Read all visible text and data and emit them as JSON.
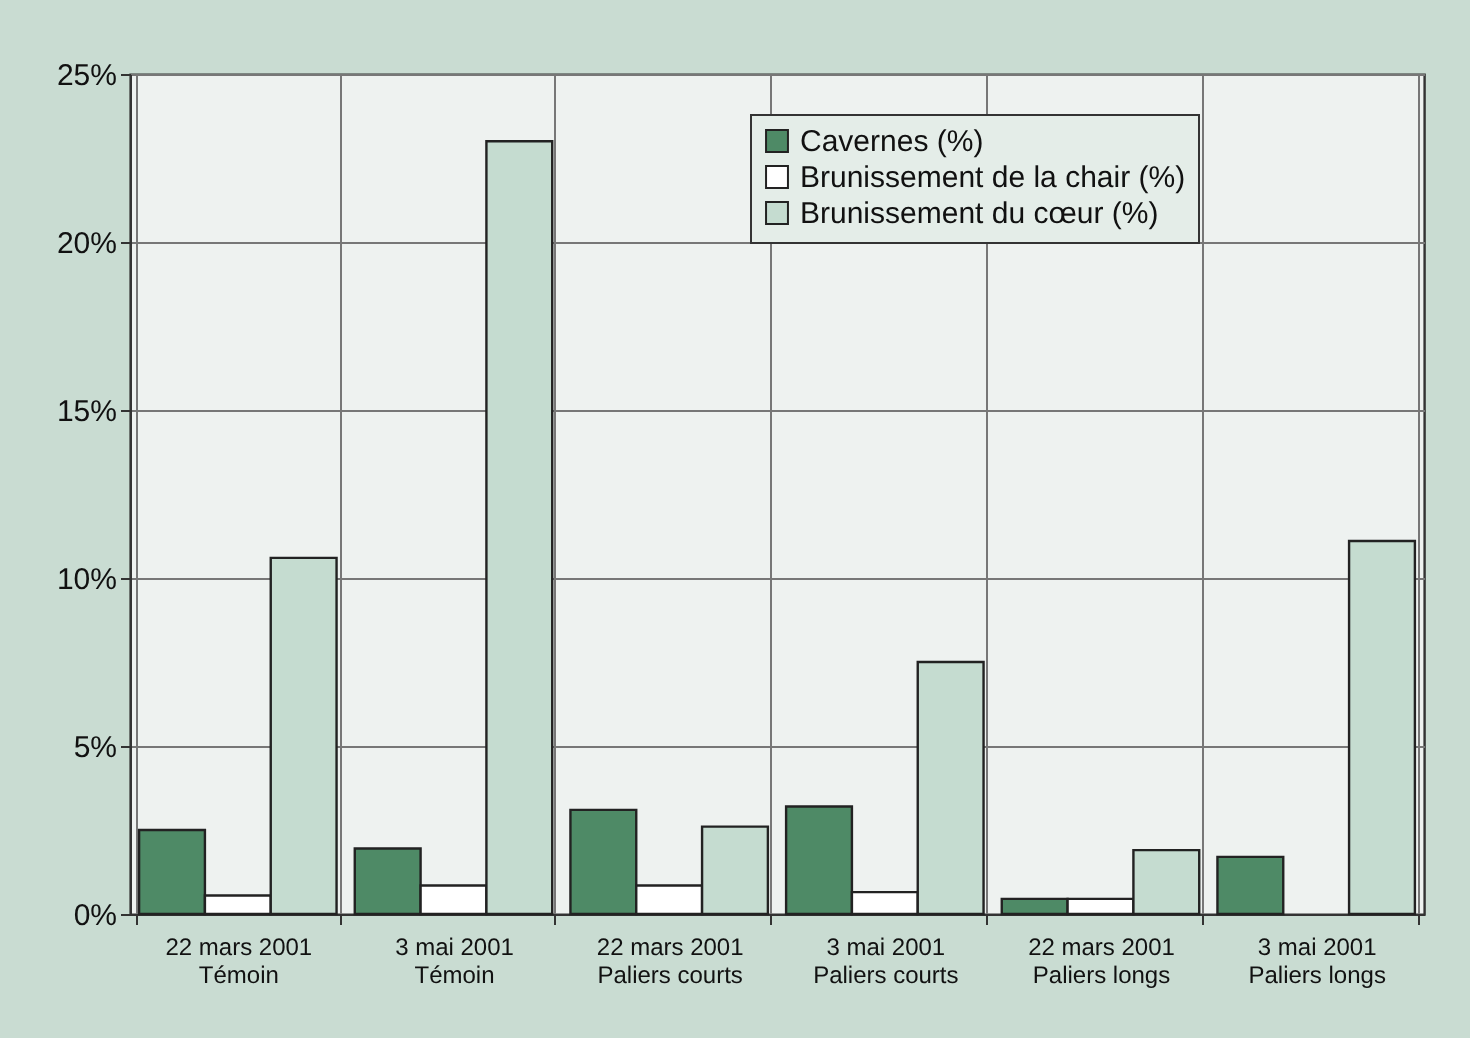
{
  "chart_data": {
    "type": "bar",
    "categories": [
      "22 mars 2001\nTémoin",
      "3 mai 2001\nTémoin",
      "22 mars 2001\nPaliers courts",
      "3 mai 2001\nPaliers courts",
      "22 mars 2001\nPaliers longs",
      "3 mai 2001\nPaliers longs"
    ],
    "series": [
      {
        "name": "Cavernes (%)",
        "color": "#4e8a66",
        "values": [
          2.5,
          1.95,
          3.1,
          3.2,
          0.45,
          1.7
        ]
      },
      {
        "name": "Brunissement de la chair (%)",
        "color": "#ffffff",
        "values": [
          0.55,
          0.85,
          0.85,
          0.65,
          0.45,
          null
        ]
      },
      {
        "name": "Brunissement du cœur (%)",
        "color": "#c5dcd0",
        "values": [
          10.6,
          23,
          2.6,
          7.5,
          1.9,
          11.1
        ]
      }
    ],
    "ylim": [
      0,
      25
    ],
    "yticks": [
      {
        "value": 0,
        "label": "0%"
      },
      {
        "value": 5,
        "label": "5%"
      },
      {
        "value": 10,
        "label": "10%"
      },
      {
        "value": 15,
        "label": "15%"
      },
      {
        "value": 20,
        "label": "20%"
      },
      {
        "value": 25,
        "label": "25%"
      }
    ],
    "grid": true,
    "legend": "top right"
  }
}
